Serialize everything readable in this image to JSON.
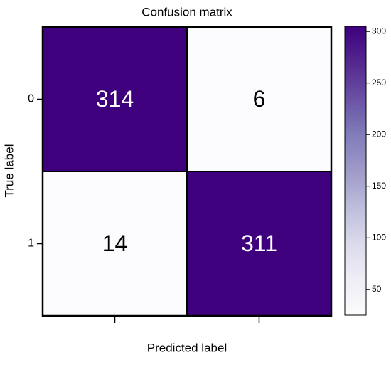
{
  "chart_data": {
    "type": "heatmap",
    "title": "Confusion matrix",
    "x_label": "Predicted label",
    "y_label": "True label",
    "x_categories": [
      null,
      null
    ],
    "y_categories": [
      "0",
      "1"
    ],
    "values": [
      [
        314,
        6
      ],
      [
        14,
        311
      ]
    ],
    "colormap": [
      "#fcfbfd",
      "#efedf5",
      "#dadaeb",
      "#bcbddc",
      "#9e9ac8",
      "#807dba",
      "#6a51a3",
      "#54278f",
      "#3f007d"
    ],
    "zlim": [
      25,
      305
    ],
    "zticks": [
      50,
      100,
      150,
      200,
      250,
      300
    ]
  }
}
